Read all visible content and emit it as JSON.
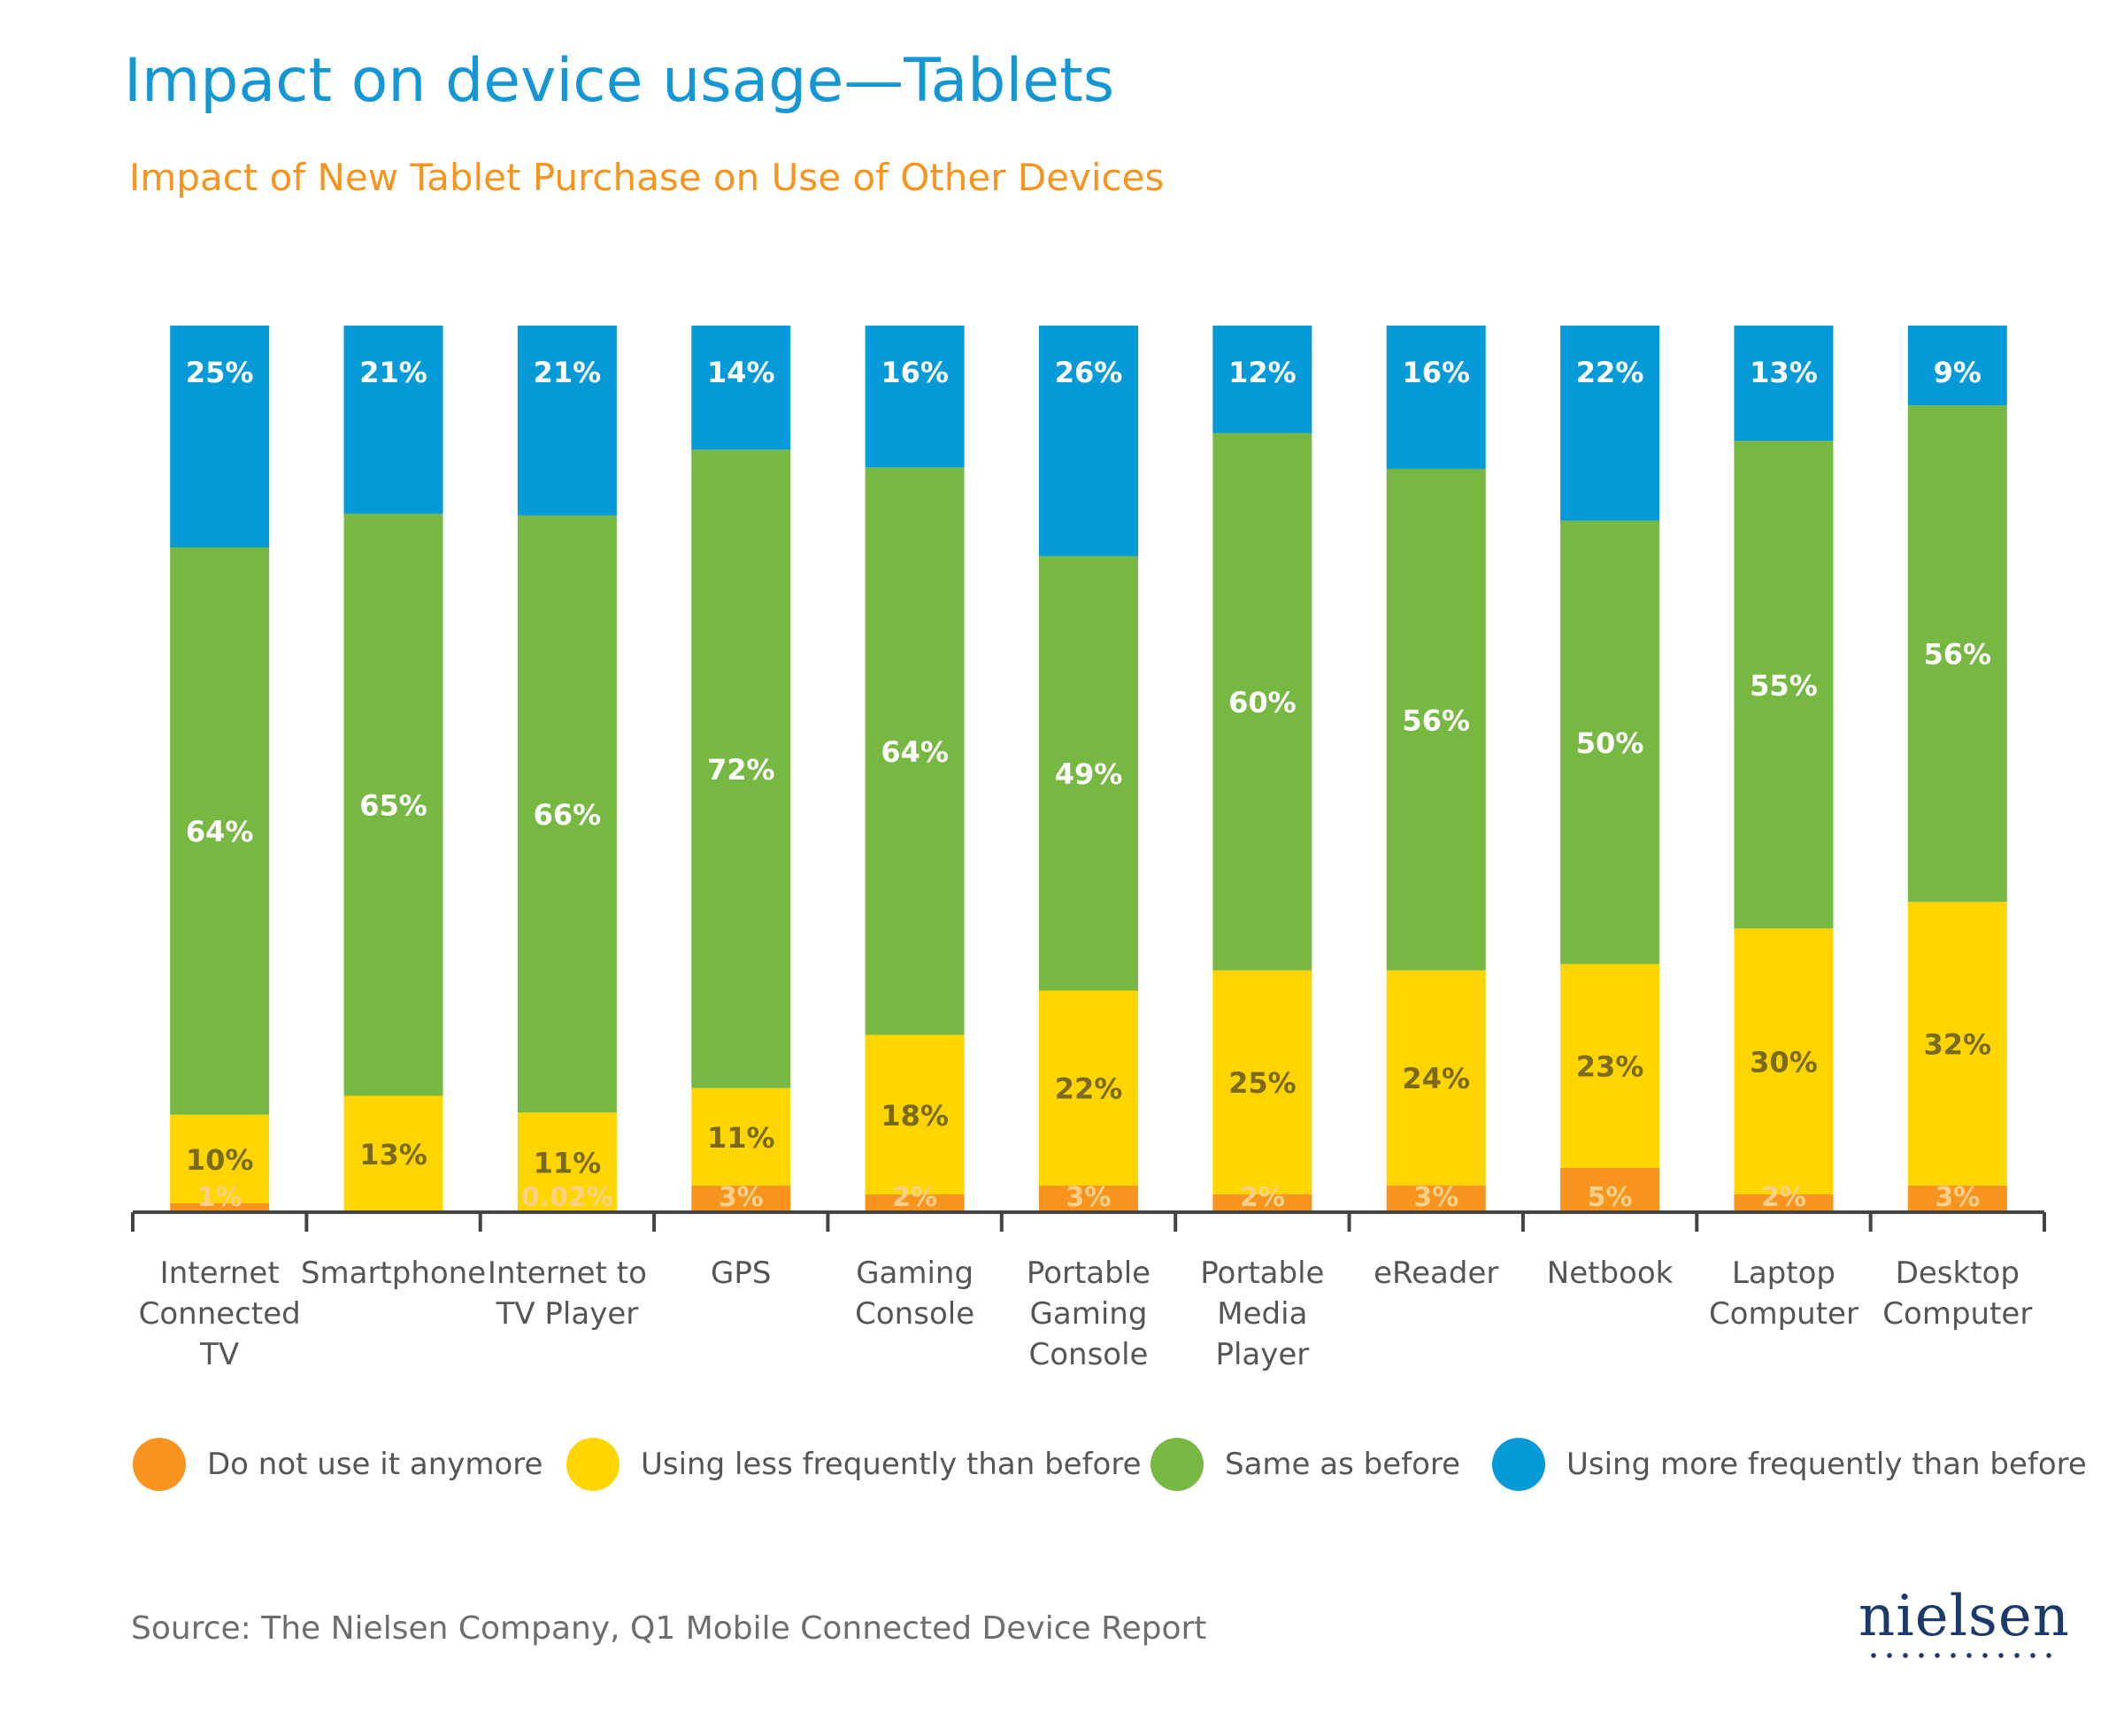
{
  "header": {
    "title": "Impact on device usage—Tablets",
    "subtitle": "Impact of New Tablet Purchase on Use of Other Devices"
  },
  "chart_data": {
    "type": "bar",
    "stacked": true,
    "title": "Impact on device usage—Tablets",
    "subtitle": "Impact of New Tablet Purchase on Use of Other Devices",
    "categories": [
      [
        "Internet",
        "Connected",
        "TV"
      ],
      [
        "Smartphone"
      ],
      [
        "Internet to",
        "TV Player"
      ],
      [
        "GPS"
      ],
      [
        "Gaming",
        "Console"
      ],
      [
        "Portable",
        "Gaming",
        "Console"
      ],
      [
        "Portable",
        "Media",
        "Player"
      ],
      [
        "eReader"
      ],
      [
        "Netbook"
      ],
      [
        "Laptop",
        "Computer"
      ],
      [
        "Desktop",
        "Computer"
      ]
    ],
    "series": [
      {
        "name": "Do not use it anymore",
        "color": "#f7941d",
        "label_color": "#fbd08a",
        "values": [
          1,
          0,
          0.02,
          3,
          2,
          3,
          2,
          3,
          5,
          2,
          3
        ],
        "labels": [
          "1%",
          "",
          "0.02%",
          "3%",
          "2%",
          "3%",
          "2%",
          "3%",
          "5%",
          "2%",
          "3%"
        ]
      },
      {
        "name": "Using less frequently than before",
        "color": "#ffd500",
        "label_color": "#7a6a1e",
        "values": [
          10,
          13,
          11,
          11,
          18,
          22,
          25,
          24,
          23,
          30,
          32
        ],
        "labels": [
          "10%",
          "13%",
          "11%",
          "11%",
          "18%",
          "22%",
          "25%",
          "24%",
          "23%",
          "30%",
          "32%"
        ]
      },
      {
        "name": "Same as before",
        "color": "#77b843",
        "label_color": "#ffffff",
        "values": [
          64,
          65,
          66,
          72,
          64,
          49,
          60,
          56,
          50,
          55,
          56
        ],
        "labels": [
          "64%",
          "65%",
          "66%",
          "72%",
          "64%",
          "49%",
          "60%",
          "56%",
          "50%",
          "55%",
          "56%"
        ]
      },
      {
        "name": "Using more frequently than before",
        "color": "#069ad8",
        "label_color": "#ffffff",
        "values": [
          25,
          21,
          21,
          14,
          16,
          26,
          12,
          16,
          22,
          13,
          9
        ],
        "labels": [
          "25%",
          "21%",
          "21%",
          "14%",
          "16%",
          "26%",
          "12%",
          "16%",
          "22%",
          "13%",
          "9%"
        ]
      }
    ],
    "ylim": [
      0,
      100
    ],
    "xlabel": "",
    "ylabel": "",
    "grid": false,
    "legend_position": "bottom"
  },
  "footer": {
    "source": "Source: The Nielsen Company, Q1 Mobile Connected Device Report",
    "logo": "nielsen"
  }
}
